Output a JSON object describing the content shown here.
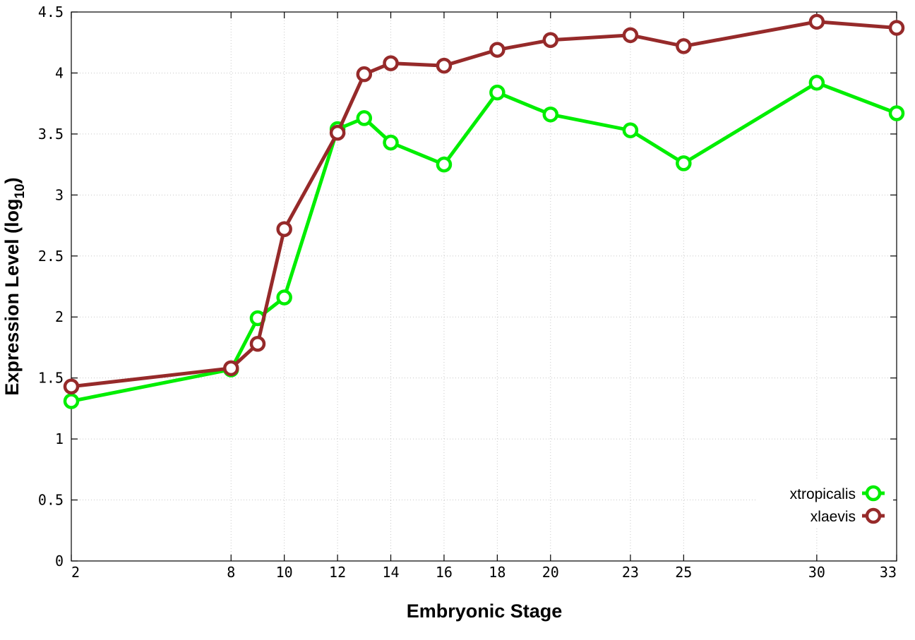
{
  "chart_data": {
    "type": "line",
    "xlabel": "Embryonic Stage",
    "ylabel": "Expression Level (log",
    "ylabel_subscript": "10",
    "ylabel_suffix": ")",
    "x": [
      2,
      8,
      9,
      10,
      12,
      13,
      14,
      16,
      18,
      20,
      23,
      25,
      30,
      33
    ],
    "x_ticks": [
      2,
      8,
      10,
      12,
      14,
      16,
      18,
      20,
      23,
      25,
      30,
      33
    ],
    "x_tick_labels": [
      "2",
      "8",
      "10",
      "12",
      "14",
      "16",
      "18",
      "20",
      "23",
      "25",
      "30",
      "33"
    ],
    "y_ticks": [
      0,
      0.5,
      1,
      1.5,
      2,
      2.5,
      3,
      3.5,
      4,
      4.5
    ],
    "y_tick_labels": [
      "0",
      "0.5",
      "1",
      "1.5",
      "2",
      "2.5",
      "3",
      "3.5",
      "4",
      "4.5"
    ],
    "xlim": [
      2,
      33
    ],
    "ylim": [
      0,
      4.5
    ],
    "grid": true,
    "legend_position": "bottom-right",
    "series": [
      {
        "name": "xtropicalis",
        "color": "#00ee00",
        "values": [
          1.31,
          1.57,
          1.99,
          2.16,
          3.54,
          3.63,
          3.43,
          3.25,
          3.84,
          3.66,
          3.53,
          3.26,
          3.92,
          3.67
        ]
      },
      {
        "name": "xlaevis",
        "color": "#962a2a",
        "values": [
          1.43,
          1.58,
          1.78,
          2.72,
          3.51,
          3.99,
          4.08,
          4.06,
          4.19,
          4.27,
          4.31,
          4.22,
          4.42,
          4.37
        ]
      }
    ]
  }
}
